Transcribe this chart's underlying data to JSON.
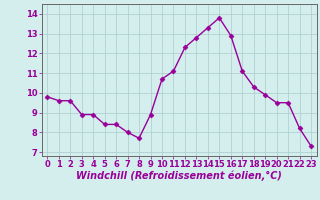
{
  "x": [
    0,
    1,
    2,
    3,
    4,
    5,
    6,
    7,
    8,
    9,
    10,
    11,
    12,
    13,
    14,
    15,
    16,
    17,
    18,
    19,
    20,
    21,
    22,
    23
  ],
  "y": [
    9.8,
    9.6,
    9.6,
    8.9,
    8.9,
    8.4,
    8.4,
    8.0,
    7.7,
    8.9,
    10.7,
    11.1,
    12.3,
    12.8,
    13.3,
    13.8,
    12.9,
    11.1,
    10.3,
    9.9,
    9.5,
    9.5,
    8.2,
    7.3
  ],
  "line_color": "#990099",
  "marker": "D",
  "markersize": 2.5,
  "linewidth": 1.0,
  "xlabel": "Windchill (Refroidissement éolien,°C)",
  "xlabel_fontsize": 7.0,
  "bg_color": "#d4eeee",
  "grid_color": "#aacccc",
  "xlim": [
    -0.5,
    23.5
  ],
  "ylim": [
    6.8,
    14.5
  ],
  "yticks": [
    7,
    8,
    9,
    10,
    11,
    12,
    13,
    14
  ],
  "xticks": [
    0,
    1,
    2,
    3,
    4,
    5,
    6,
    7,
    8,
    9,
    10,
    11,
    12,
    13,
    14,
    15,
    16,
    17,
    18,
    19,
    20,
    21,
    22,
    23
  ],
  "tick_fontsize": 6.0,
  "tick_color": "#990099",
  "xlabel_color": "#990099",
  "spine_color": "#666666"
}
